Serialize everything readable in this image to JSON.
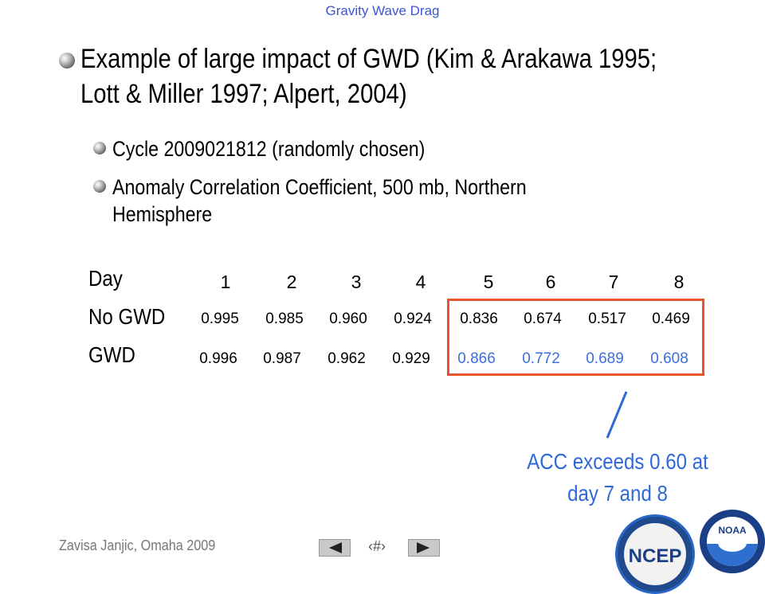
{
  "header": {
    "title": "Gravity Wave Drag"
  },
  "bullets": {
    "main": [
      "Example of large impact of GWD (Kim & Arakawa 1995;",
      "Lott & Miller 1997; Alpert, 2004)"
    ],
    "sub1": "Cycle 2009021812 (randomly chosen)",
    "sub2": [
      "Anomaly Correlation Coefficient, 500 mb, Northern",
      "Hemisphere"
    ]
  },
  "table": {
    "row_labels": {
      "day": "Day",
      "no_gwd": "No GWD",
      "gwd": "GWD"
    },
    "days": [
      "1",
      "2",
      "3",
      "4",
      "5",
      "6",
      "7",
      "8"
    ],
    "no_gwd": [
      "0.995",
      "0.985",
      "0.960",
      "0.924",
      "0.836",
      "0.674",
      "0.517",
      "0.469"
    ],
    "gwd": [
      "0.996",
      "0.987",
      "0.962",
      "0.929",
      "0.866",
      "0.772",
      "0.689",
      "0.608"
    ]
  },
  "annotation": {
    "line1": "ACC exceeds 0.60 at",
    "line2": "day 7 and 8",
    "color": "#2f68d8"
  },
  "highlight_color": "#e8552b",
  "footer": {
    "author": "Zavisa Janjic, Omaha 2009",
    "page_number": "‹#›"
  },
  "nav": {
    "prev_icon": "triangle-left-icon",
    "next_icon": "triangle-right-icon"
  },
  "logos": {
    "ncep": "NCEP",
    "noaa": "NOAA"
  }
}
